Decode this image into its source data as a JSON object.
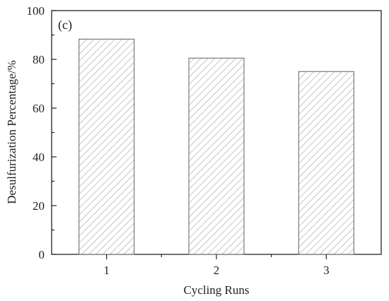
{
  "panel_label": "(c)",
  "chart_data": {
    "type": "bar",
    "categories": [
      "1",
      "2",
      "3"
    ],
    "values": [
      88.3,
      80.5,
      75.0
    ],
    "xlabel": "Cycling Runs",
    "ylabel": "Desulfurization Percentage/%",
    "ylim": [
      0,
      100
    ],
    "yticks": [
      0,
      20,
      40,
      60,
      80,
      100
    ],
    "ytick_labels": [
      "0",
      "20",
      "40",
      "60",
      "80",
      "100"
    ],
    "grid": false,
    "bar_style": "hatched",
    "colors": {
      "bar_fill": "#ffffff",
      "hatch": "#a0a0a0",
      "bar_edge": "#6f6f6f",
      "axis": "#222222"
    }
  }
}
